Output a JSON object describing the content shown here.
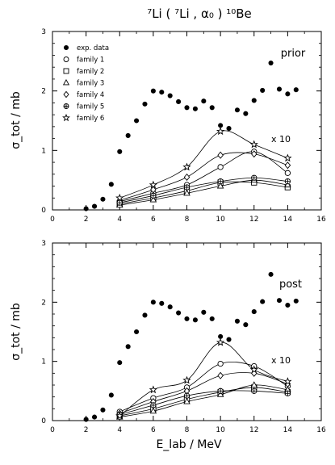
{
  "chart_data": [
    {
      "type": "scatter",
      "title": "⁷Li ( ⁷Li , α₀ ) ¹⁰Be",
      "panel_label": "prior",
      "multiplier_label": "x 10",
      "xlabel": "E_lab / MeV",
      "ylabel": "σ_tot / mb",
      "xlim": [
        0,
        16
      ],
      "ylim": [
        0,
        3
      ],
      "xticks": [
        0,
        2,
        4,
        6,
        8,
        10,
        12,
        14,
        16
      ],
      "yticks": [
        0,
        1,
        2,
        3
      ],
      "legend_position": "top-left",
      "series": [
        {
          "name": "exp. data",
          "marker": "filled-circle",
          "line": false,
          "x": [
            2,
            2.5,
            3,
            3.5,
            4,
            4.5,
            5,
            5.5,
            6,
            6.5,
            7,
            7.5,
            8,
            8.5,
            9,
            9.5,
            10,
            10.5,
            11,
            11.5,
            12,
            12.5,
            13,
            13.5,
            14,
            14.5
          ],
          "y": [
            0.02,
            0.06,
            0.18,
            0.43,
            0.98,
            1.25,
            1.5,
            1.78,
            2.0,
            1.98,
            1.92,
            1.82,
            1.72,
            1.7,
            1.83,
            1.72,
            1.42,
            1.37,
            1.68,
            1.62,
            1.84,
            2.01,
            2.47,
            2.03,
            1.95,
            2.02
          ]
        },
        {
          "name": "family 1",
          "marker": "circle",
          "x": [
            4,
            6,
            8,
            10,
            12,
            14
          ],
          "y": [
            0.14,
            0.28,
            0.42,
            0.72,
            0.98,
            0.62
          ]
        },
        {
          "name": "family 2",
          "marker": "square",
          "x": [
            4,
            6,
            8,
            10,
            12,
            14
          ],
          "y": [
            0.1,
            0.2,
            0.32,
            0.46,
            0.46,
            0.38
          ]
        },
        {
          "name": "family 3",
          "marker": "triangle",
          "x": [
            4,
            6,
            8,
            10,
            12,
            14
          ],
          "y": [
            0.08,
            0.17,
            0.28,
            0.4,
            0.5,
            0.42
          ]
        },
        {
          "name": "family 4",
          "marker": "diamond",
          "x": [
            4,
            6,
            8,
            10,
            12,
            14
          ],
          "y": [
            0.16,
            0.34,
            0.55,
            0.92,
            0.94,
            0.75
          ]
        },
        {
          "name": "family 5",
          "marker": "circle-plus",
          "x": [
            4,
            6,
            8,
            10,
            12,
            14
          ],
          "y": [
            0.12,
            0.24,
            0.38,
            0.48,
            0.54,
            0.48
          ]
        },
        {
          "name": "family 6",
          "marker": "star",
          "x": [
            4,
            6,
            8,
            10,
            12,
            14
          ],
          "y": [
            0.2,
            0.42,
            0.72,
            1.32,
            1.1,
            0.87
          ]
        }
      ]
    },
    {
      "type": "scatter",
      "panel_label": "post",
      "multiplier_label": "x 10",
      "xlabel": "E_lab / MeV",
      "ylabel": "σ_tot / mb",
      "xlim": [
        0,
        16
      ],
      "ylim": [
        0,
        3
      ],
      "xticks": [
        0,
        2,
        4,
        6,
        8,
        10,
        12,
        14,
        16
      ],
      "yticks": [
        0,
        1,
        2,
        3
      ],
      "series": [
        {
          "name": "exp. data",
          "marker": "filled-circle",
          "line": false,
          "x": [
            2,
            2.5,
            3,
            3.5,
            4,
            4.5,
            5,
            5.5,
            6,
            6.5,
            7,
            7.5,
            8,
            8.5,
            9,
            9.5,
            10,
            10.5,
            11,
            11.5,
            12,
            12.5,
            13,
            13.5,
            14,
            14.5
          ],
          "y": [
            0.02,
            0.06,
            0.18,
            0.43,
            0.98,
            1.25,
            1.5,
            1.78,
            2.0,
            1.98,
            1.92,
            1.82,
            1.72,
            1.7,
            1.83,
            1.72,
            1.42,
            1.37,
            1.68,
            1.62,
            1.84,
            2.01,
            2.47,
            2.03,
            1.95,
            2.02
          ]
        },
        {
          "name": "family 1",
          "marker": "circle",
          "x": [
            4,
            6,
            8,
            10,
            12,
            14
          ],
          "y": [
            0.15,
            0.38,
            0.56,
            0.96,
            0.92,
            0.58
          ]
        },
        {
          "name": "family 2",
          "marker": "square",
          "x": [
            4,
            6,
            8,
            10,
            12,
            14
          ],
          "y": [
            0.08,
            0.2,
            0.36,
            0.48,
            0.56,
            0.48
          ]
        },
        {
          "name": "family 3",
          "marker": "triangle",
          "x": [
            4,
            6,
            8,
            10,
            12,
            14
          ],
          "y": [
            0.06,
            0.16,
            0.32,
            0.44,
            0.6,
            0.52
          ]
        },
        {
          "name": "family 4",
          "marker": "diamond",
          "x": [
            4,
            6,
            8,
            10,
            12,
            14
          ],
          "y": [
            0.12,
            0.32,
            0.5,
            0.76,
            0.8,
            0.62
          ]
        },
        {
          "name": "family 5",
          "marker": "circle-plus",
          "x": [
            4,
            6,
            8,
            10,
            12,
            14
          ],
          "y": [
            0.1,
            0.26,
            0.42,
            0.5,
            0.5,
            0.46
          ]
        },
        {
          "name": "family 6",
          "marker": "star",
          "x": [
            4,
            6,
            8,
            10,
            12,
            14
          ],
          "y": [
            0.08,
            0.52,
            0.68,
            1.32,
            0.86,
            0.66
          ]
        }
      ]
    }
  ]
}
